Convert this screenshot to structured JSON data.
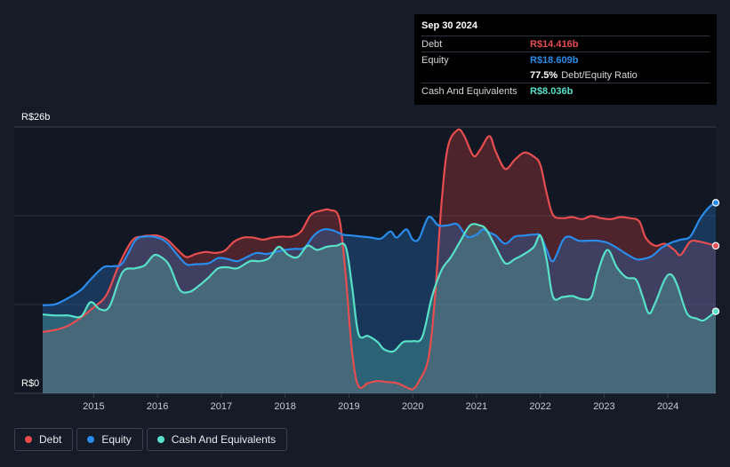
{
  "tooltip": {
    "date": "Sep 30 2024",
    "rows": [
      {
        "label": "Debt",
        "value": "R$14.416b",
        "color": "#e64d50"
      },
      {
        "label": "Equity",
        "value": "R$18.609b",
        "color": "#2a8bea"
      },
      {
        "label": "",
        "value": "77.5%",
        "extra": "Debt/Equity Ratio",
        "color": "#ffffff"
      },
      {
        "label": "Cash And Equivalents",
        "value": "R$8.036b",
        "color": "#58e0c8"
      }
    ]
  },
  "legend": [
    {
      "label": "Debt",
      "color": "#e64d50"
    },
    {
      "label": "Equity",
      "color": "#2a8bea"
    },
    {
      "label": "Cash And Equivalents",
      "color": "#58e0c8"
    }
  ],
  "chart_data": {
    "type": "area",
    "y_top_label": "R$26b",
    "y_bottom_label": "R$0",
    "ylim": [
      0,
      26
    ],
    "xlim": [
      2014.2,
      2024.75
    ],
    "x_ticks": [
      2015,
      2016,
      2017,
      2018,
      2019,
      2020,
      2021,
      2022,
      2023,
      2024
    ],
    "series": [
      {
        "name": "Debt",
        "color": "#e64d50",
        "points": [
          [
            2014.2,
            6.0
          ],
          [
            2014.4,
            6.2
          ],
          [
            2014.6,
            6.6
          ],
          [
            2014.8,
            7.4
          ],
          [
            2015.0,
            8.4
          ],
          [
            2015.2,
            9.6
          ],
          [
            2015.4,
            12.6
          ],
          [
            2015.6,
            14.9
          ],
          [
            2015.75,
            15.3
          ],
          [
            2015.9,
            15.4
          ],
          [
            2016.0,
            15.4
          ],
          [
            2016.15,
            15.0
          ],
          [
            2016.3,
            14.1
          ],
          [
            2016.45,
            13.3
          ],
          [
            2016.6,
            13.6
          ],
          [
            2016.75,
            13.8
          ],
          [
            2016.9,
            13.7
          ],
          [
            2017.05,
            13.9
          ],
          [
            2017.2,
            14.8
          ],
          [
            2017.35,
            15.2
          ],
          [
            2017.5,
            15.2
          ],
          [
            2017.65,
            15.0
          ],
          [
            2017.8,
            15.2
          ],
          [
            2017.95,
            15.3
          ],
          [
            2018.1,
            15.3
          ],
          [
            2018.25,
            15.8
          ],
          [
            2018.4,
            17.4
          ],
          [
            2018.55,
            17.8
          ],
          [
            2018.7,
            17.9
          ],
          [
            2018.85,
            17.0
          ],
          [
            2018.95,
            11.5
          ],
          [
            2019.05,
            4.0
          ],
          [
            2019.15,
            0.7
          ],
          [
            2019.3,
            1.0
          ],
          [
            2019.45,
            1.2
          ],
          [
            2019.6,
            1.1
          ],
          [
            2019.75,
            1.0
          ],
          [
            2019.9,
            0.6
          ],
          [
            2020.0,
            0.4
          ],
          [
            2020.1,
            1.2
          ],
          [
            2020.25,
            3.5
          ],
          [
            2020.35,
            9.5
          ],
          [
            2020.45,
            18.5
          ],
          [
            2020.55,
            24.0
          ],
          [
            2020.7,
            25.7
          ],
          [
            2020.8,
            25.2
          ],
          [
            2020.95,
            23.2
          ],
          [
            2021.05,
            23.7
          ],
          [
            2021.2,
            25.1
          ],
          [
            2021.3,
            23.6
          ],
          [
            2021.45,
            21.9
          ],
          [
            2021.6,
            22.8
          ],
          [
            2021.75,
            23.5
          ],
          [
            2021.9,
            23.1
          ],
          [
            2022.0,
            22.3
          ],
          [
            2022.1,
            19.5
          ],
          [
            2022.2,
            17.4
          ],
          [
            2022.35,
            17.1
          ],
          [
            2022.5,
            17.2
          ],
          [
            2022.65,
            17.0
          ],
          [
            2022.8,
            17.3
          ],
          [
            2022.95,
            17.1
          ],
          [
            2023.1,
            17.0
          ],
          [
            2023.25,
            17.2
          ],
          [
            2023.4,
            17.1
          ],
          [
            2023.55,
            16.8
          ],
          [
            2023.65,
            15.2
          ],
          [
            2023.8,
            14.4
          ],
          [
            2023.95,
            14.6
          ],
          [
            2024.1,
            14.0
          ],
          [
            2024.2,
            13.5
          ],
          [
            2024.35,
            14.8
          ],
          [
            2024.5,
            14.8
          ],
          [
            2024.75,
            14.4
          ]
        ]
      },
      {
        "name": "Equity",
        "color": "#2a8bea",
        "points": [
          [
            2014.2,
            8.6
          ],
          [
            2014.4,
            8.7
          ],
          [
            2014.6,
            9.3
          ],
          [
            2014.8,
            10.1
          ],
          [
            2014.95,
            11.1
          ],
          [
            2015.15,
            12.3
          ],
          [
            2015.3,
            12.4
          ],
          [
            2015.45,
            12.7
          ],
          [
            2015.65,
            14.9
          ],
          [
            2015.8,
            15.3
          ],
          [
            2016.0,
            15.2
          ],
          [
            2016.15,
            14.7
          ],
          [
            2016.3,
            13.6
          ],
          [
            2016.45,
            12.6
          ],
          [
            2016.6,
            12.6
          ],
          [
            2016.8,
            12.7
          ],
          [
            2016.95,
            13.2
          ],
          [
            2017.1,
            13.1
          ],
          [
            2017.25,
            12.9
          ],
          [
            2017.4,
            13.3
          ],
          [
            2017.55,
            13.7
          ],
          [
            2017.7,
            13.6
          ],
          [
            2017.85,
            13.8
          ],
          [
            2018.0,
            14.0
          ],
          [
            2018.15,
            14.1
          ],
          [
            2018.3,
            14.2
          ],
          [
            2018.45,
            15.4
          ],
          [
            2018.6,
            16.0
          ],
          [
            2018.75,
            15.9
          ],
          [
            2018.9,
            15.5
          ],
          [
            2019.05,
            15.4
          ],
          [
            2019.2,
            15.3
          ],
          [
            2019.35,
            15.2
          ],
          [
            2019.5,
            15.1
          ],
          [
            2019.65,
            15.8
          ],
          [
            2019.75,
            15.2
          ],
          [
            2019.9,
            16.0
          ],
          [
            2020.0,
            15.0
          ],
          [
            2020.1,
            15.1
          ],
          [
            2020.25,
            17.2
          ],
          [
            2020.4,
            16.4
          ],
          [
            2020.55,
            16.4
          ],
          [
            2020.7,
            16.5
          ],
          [
            2020.85,
            15.3
          ],
          [
            2021.0,
            15.5
          ],
          [
            2021.1,
            16.0
          ],
          [
            2021.2,
            15.7
          ],
          [
            2021.3,
            15.4
          ],
          [
            2021.45,
            14.6
          ],
          [
            2021.6,
            15.3
          ],
          [
            2021.75,
            15.4
          ],
          [
            2021.9,
            15.5
          ],
          [
            2022.0,
            15.4
          ],
          [
            2022.1,
            14.0
          ],
          [
            2022.2,
            12.9
          ],
          [
            2022.35,
            14.9
          ],
          [
            2022.45,
            15.3
          ],
          [
            2022.6,
            14.9
          ],
          [
            2022.75,
            14.9
          ],
          [
            2022.9,
            14.9
          ],
          [
            2023.05,
            14.7
          ],
          [
            2023.2,
            14.2
          ],
          [
            2023.35,
            13.6
          ],
          [
            2023.5,
            13.1
          ],
          [
            2023.6,
            13.1
          ],
          [
            2023.75,
            13.4
          ],
          [
            2023.9,
            14.2
          ],
          [
            2024.05,
            14.7
          ],
          [
            2024.2,
            15.0
          ],
          [
            2024.35,
            15.3
          ],
          [
            2024.5,
            17.0
          ],
          [
            2024.65,
            18.2
          ],
          [
            2024.75,
            18.6
          ]
        ]
      },
      {
        "name": "Cash And Equivalents",
        "color": "#58e0c8",
        "points": [
          [
            2014.2,
            7.7
          ],
          [
            2014.4,
            7.6
          ],
          [
            2014.6,
            7.6
          ],
          [
            2014.8,
            7.5
          ],
          [
            2014.95,
            8.9
          ],
          [
            2015.1,
            8.2
          ],
          [
            2015.25,
            8.5
          ],
          [
            2015.45,
            11.8
          ],
          [
            2015.65,
            12.2
          ],
          [
            2015.8,
            12.5
          ],
          [
            2015.95,
            13.5
          ],
          [
            2016.1,
            13.1
          ],
          [
            2016.2,
            12.3
          ],
          [
            2016.35,
            10.1
          ],
          [
            2016.5,
            9.9
          ],
          [
            2016.65,
            10.5
          ],
          [
            2016.8,
            11.3
          ],
          [
            2016.95,
            12.2
          ],
          [
            2017.1,
            12.3
          ],
          [
            2017.25,
            12.2
          ],
          [
            2017.45,
            12.9
          ],
          [
            2017.6,
            12.9
          ],
          [
            2017.75,
            13.2
          ],
          [
            2017.9,
            14.3
          ],
          [
            2018.05,
            13.5
          ],
          [
            2018.2,
            13.3
          ],
          [
            2018.35,
            14.4
          ],
          [
            2018.5,
            14.0
          ],
          [
            2018.65,
            14.3
          ],
          [
            2018.8,
            14.4
          ],
          [
            2018.95,
            14.3
          ],
          [
            2019.05,
            10.4
          ],
          [
            2019.15,
            5.8
          ],
          [
            2019.3,
            5.6
          ],
          [
            2019.45,
            5.0
          ],
          [
            2019.55,
            4.3
          ],
          [
            2019.7,
            4.1
          ],
          [
            2019.85,
            5.0
          ],
          [
            2020.0,
            5.1
          ],
          [
            2020.15,
            5.5
          ],
          [
            2020.3,
            9.4
          ],
          [
            2020.45,
            12.0
          ],
          [
            2020.6,
            13.3
          ],
          [
            2020.75,
            14.9
          ],
          [
            2020.9,
            16.4
          ],
          [
            2021.05,
            16.4
          ],
          [
            2021.15,
            16.0
          ],
          [
            2021.3,
            14.3
          ],
          [
            2021.45,
            12.7
          ],
          [
            2021.6,
            13.1
          ],
          [
            2021.75,
            13.6
          ],
          [
            2021.9,
            14.3
          ],
          [
            2022.0,
            15.4
          ],
          [
            2022.1,
            13.0
          ],
          [
            2022.2,
            9.4
          ],
          [
            2022.35,
            9.4
          ],
          [
            2022.5,
            9.5
          ],
          [
            2022.65,
            9.2
          ],
          [
            2022.8,
            9.4
          ],
          [
            2022.9,
            11.8
          ],
          [
            2023.05,
            14.0
          ],
          [
            2023.2,
            12.3
          ],
          [
            2023.35,
            11.3
          ],
          [
            2023.5,
            11.1
          ],
          [
            2023.6,
            9.5
          ],
          [
            2023.7,
            7.8
          ],
          [
            2023.8,
            8.8
          ],
          [
            2023.95,
            11.1
          ],
          [
            2024.05,
            11.6
          ],
          [
            2024.15,
            10.5
          ],
          [
            2024.3,
            7.8
          ],
          [
            2024.45,
            7.3
          ],
          [
            2024.55,
            7.1
          ],
          [
            2024.65,
            7.5
          ],
          [
            2024.75,
            8.0
          ]
        ]
      }
    ]
  }
}
